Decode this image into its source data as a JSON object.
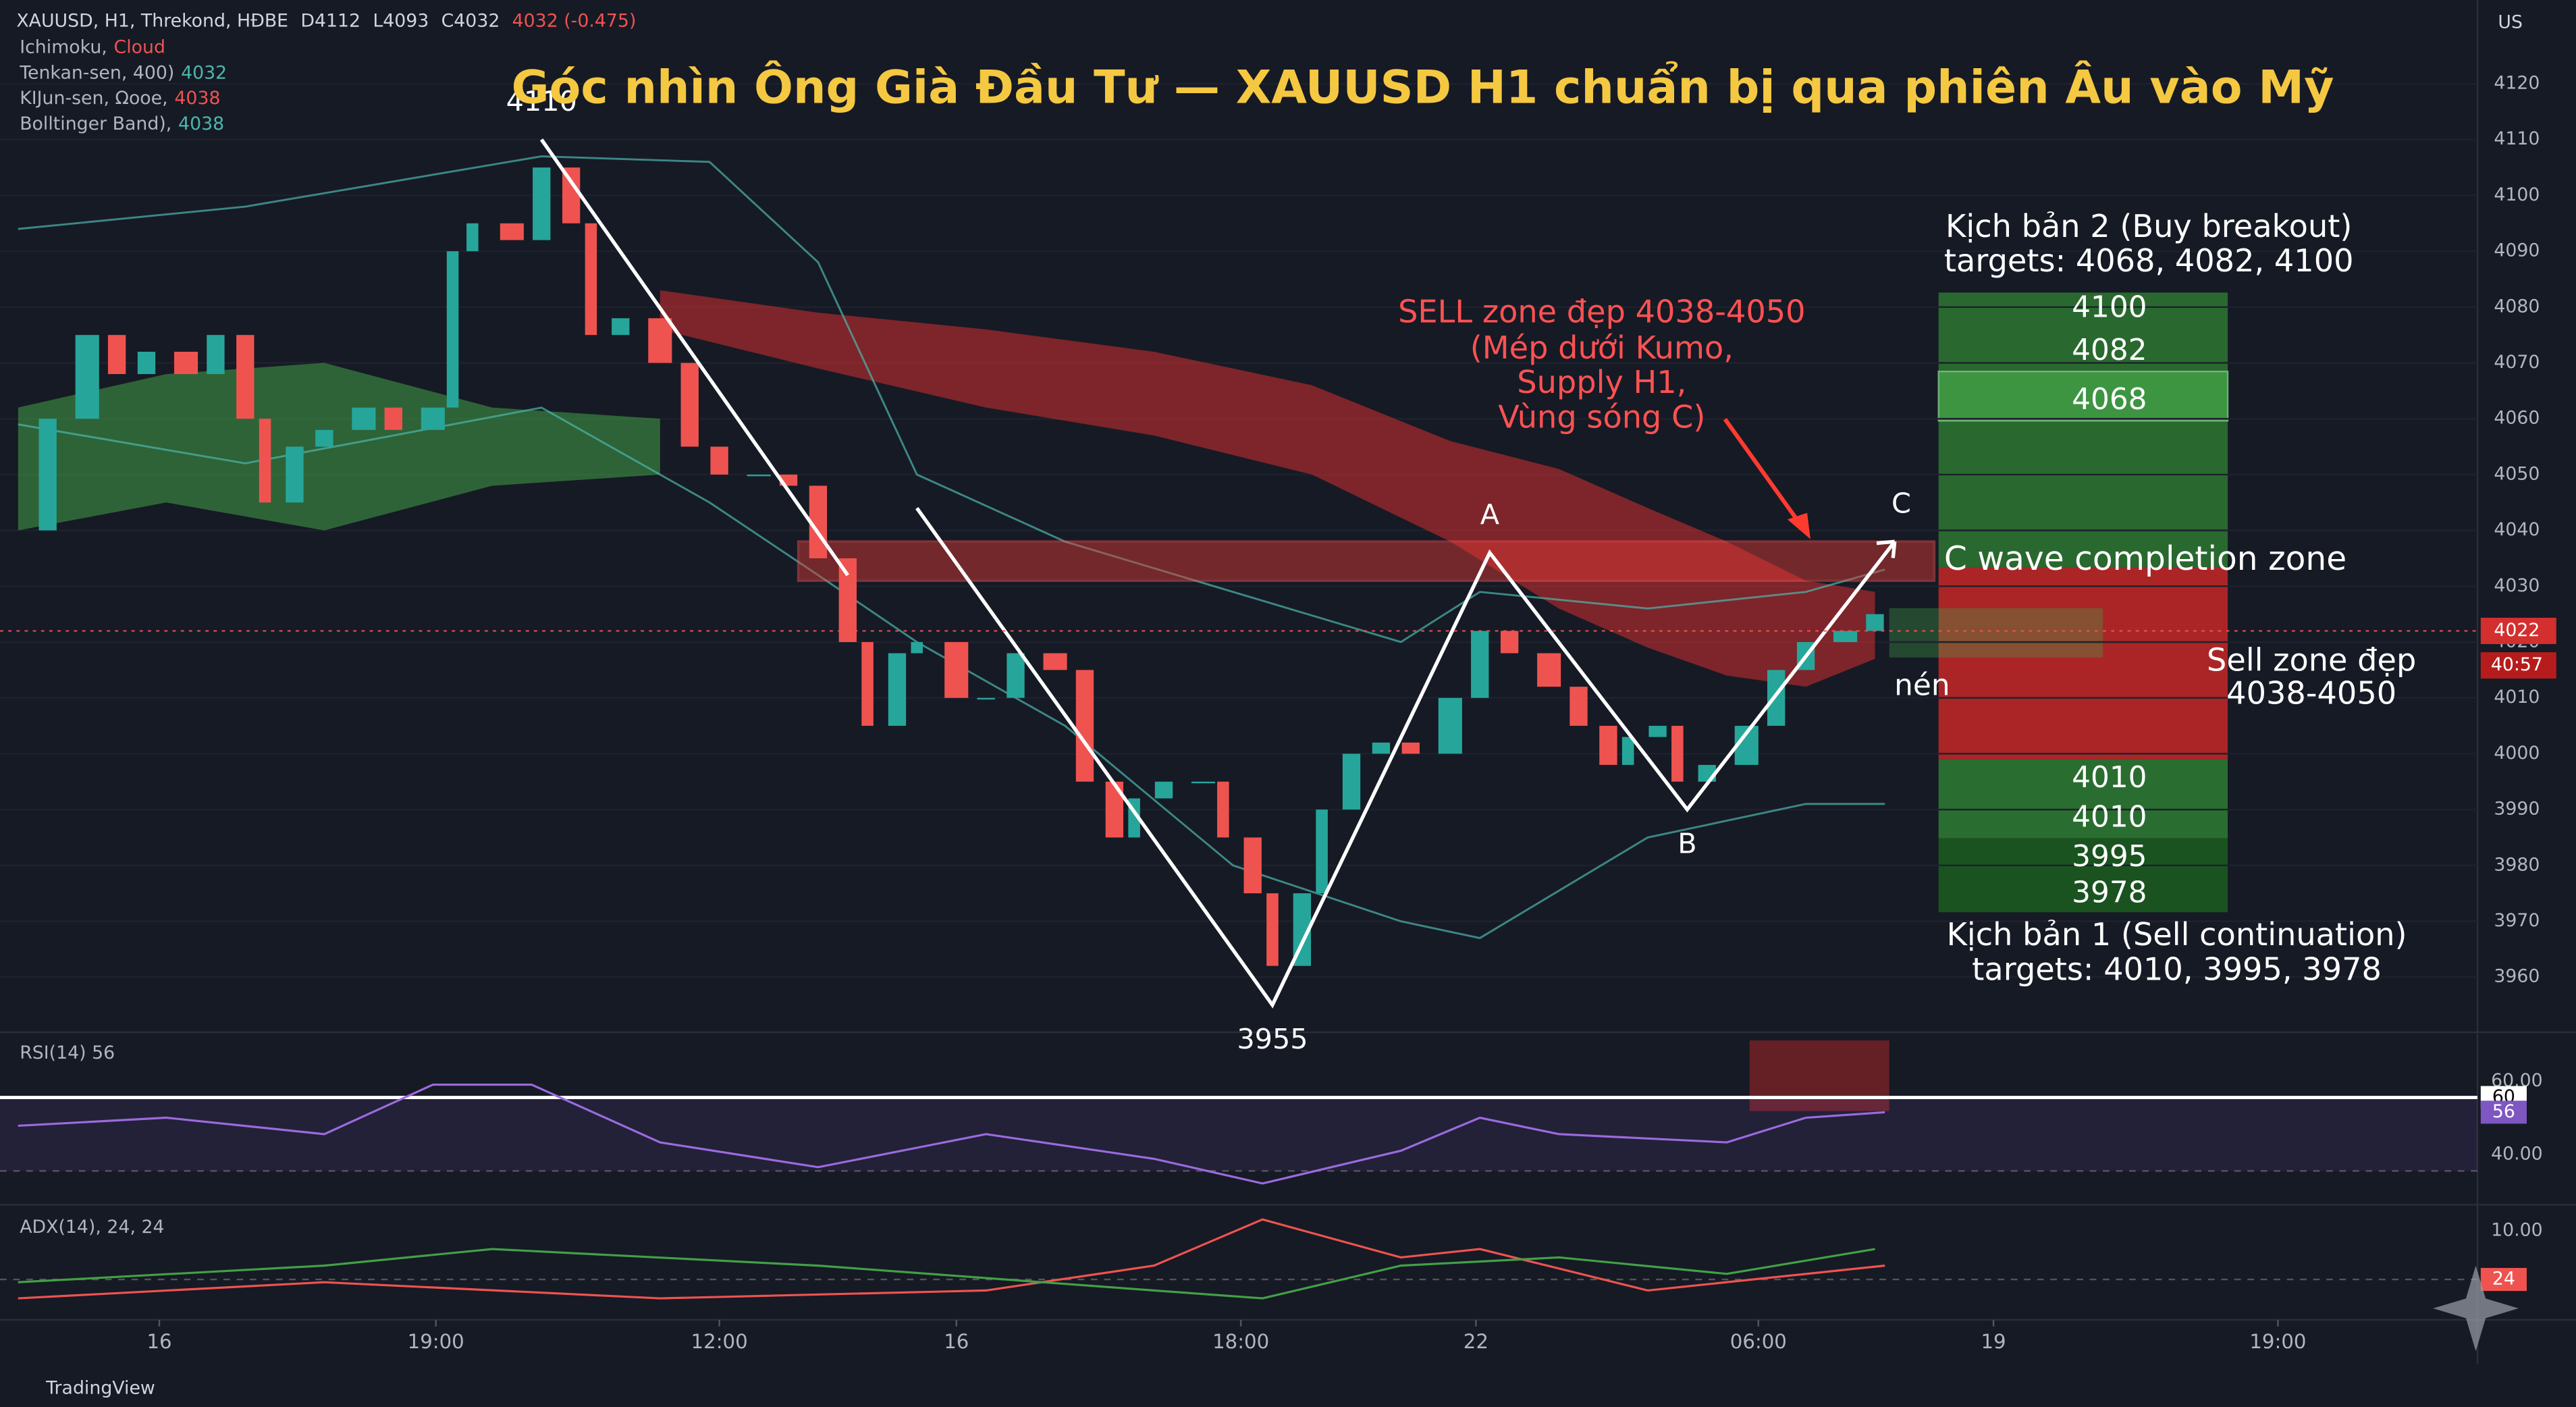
{
  "chart_data": {
    "type": "candlestick",
    "title": "Góc nhìn Ông Già Đầu Tư — XAUUSD H1 chuẩn bị qua phiên Âu vào Mỹ",
    "header_items": [
      "XAUUSD, H1, Threkond, HĐBE",
      "D4112",
      "L4093",
      "C4032",
      "4032 (-0.475)"
    ],
    "indicators": [
      {
        "name": "Ichimoku,",
        "value": "Cloud"
      },
      {
        "name": "Tenkan-sen, 400)",
        "value": "4032"
      },
      {
        "name": "KIJun-sen, Ωooe,",
        "value": "4038"
      },
      {
        "name": "Bolltinger Band),",
        "value": "4038"
      }
    ],
    "corner_label": "US",
    "xlim": [
      0,
      250
    ],
    "xticks": [
      {
        "value": 15.3,
        "label": "16"
      },
      {
        "value": 43.3,
        "label": "19:00"
      },
      {
        "value": 72,
        "label": "12:00"
      },
      {
        "value": 96,
        "label": "16"
      },
      {
        "value": 124.8,
        "label": "18:00"
      },
      {
        "value": 148.6,
        "label": "22"
      },
      {
        "value": 177.2,
        "label": "06:00"
      },
      {
        "value": 201,
        "label": "19"
      },
      {
        "value": 229.8,
        "label": "19:00"
      }
    ],
    "ylim": [
      3951,
      4135
    ],
    "yticks": [
      3960,
      3970,
      3980,
      3990,
      4000,
      4010,
      4020,
      4030,
      4040,
      4050,
      4060,
      4070,
      4080,
      4090,
      4100,
      4110,
      4120
    ],
    "price": {
      "up_color": "#26a69a",
      "down_color": "#ef5350",
      "x": [
        1,
        4,
        8,
        11,
        14,
        18,
        21,
        24,
        26,
        29,
        32,
        36,
        39,
        43,
        45,
        47,
        51,
        54,
        57,
        59,
        62,
        66,
        69,
        72,
        76,
        79,
        82,
        85,
        87,
        90,
        92,
        96,
        99,
        102,
        106,
        109,
        112,
        114,
        117,
        121,
        123,
        126,
        128,
        131,
        133,
        136,
        139,
        142,
        146,
        149,
        152,
        156,
        159,
        162,
        164,
        167,
        169,
        172,
        176,
        179,
        182,
        186,
        189
      ],
      "values": [
        4040,
        4060,
        4075,
        4068,
        4072,
        4068,
        4075,
        4060,
        4045,
        4055,
        4058,
        4062,
        4058,
        4062,
        4090,
        4095,
        4092,
        4105,
        4095,
        4075,
        4078,
        4070,
        4055,
        4050,
        4050,
        4048,
        4035,
        4020,
        4005,
        4018,
        4020,
        4010,
        4010,
        4018,
        4015,
        3995,
        3985,
        3992,
        3995,
        3995,
        3985,
        3975,
        3962,
        3975,
        3990,
        4000,
        4002,
        4000,
        4010,
        4022,
        4018,
        4012,
        4005,
        3998,
        4003,
        4005,
        3995,
        3998,
        4005,
        4015,
        4020,
        4022,
        4025
      ]
    },
    "clouds": [
      {
        "color": "#d32f2f",
        "x": [
          66,
          82,
          99,
          116,
          132,
          146,
          157,
          166,
          174,
          182,
          189
        ],
        "upper": [
          4083,
          4079,
          4076,
          4072,
          4066,
          4056,
          4051,
          4044,
          4038,
          4031,
          4029
        ],
        "lower": [
          4076,
          4069,
          4062,
          4057,
          4050,
          4038,
          4026,
          4019,
          4014,
          4012,
          4017
        ]
      },
      {
        "color": "#43a047",
        "x": [
          1,
          16,
          32,
          49,
          66
        ],
        "upper": [
          4062,
          4068,
          4070,
          4062,
          4060
        ],
        "lower": [
          4040,
          4045,
          4040,
          4048,
          4050
        ]
      }
    ],
    "bollinger": {
      "color": "#4db6ac",
      "x": [
        1,
        24,
        54,
        71,
        82,
        92,
        107,
        124,
        141,
        149,
        166,
        182,
        190
      ],
      "upper": [
        4094,
        4098,
        4107,
        4106,
        4088,
        4050,
        4038,
        4029,
        4020,
        4029,
        4026,
        4029,
        4033
      ],
      "lower": [
        4059,
        4052,
        4062,
        4045,
        4032,
        4020,
        4005,
        3980,
        3970,
        3967,
        3985,
        3991,
        3991
      ]
    },
    "wave": {
      "color": "#ffffff",
      "x": [
        54,
        85,
        null,
        92,
        128,
        150,
        170,
        191
      ],
      "values": [
        4110,
        4032,
        null,
        4044,
        3955,
        4036,
        3990,
        4038
      ],
      "labels": [
        "4110",
        null,
        null,
        null,
        "3955",
        "A",
        "B",
        "C"
      ]
    },
    "zone": {
      "label": "C wave completion zone",
      "range": [
        4031,
        4038
      ],
      "xrange": [
        80,
        195
      ]
    },
    "price_tags": [
      {
        "value": 4022,
        "label": "4022"
      },
      {
        "value": 4017,
        "label": "40:57"
      }
    ],
    "annotations": [
      "Kịch bản 2 (Buy breakout)",
      "targets: 4068, 4082, 4100",
      "SELL zone đẹp 4038-4050",
      "(Mép dưới Kumo,",
      "Supply H1,",
      "Vùng sóng C)",
      "Sell zone đẹp",
      "4038-4050",
      "nén",
      "4100",
      "4082",
      "4068",
      "4010",
      "4010",
      "3995",
      "3978",
      "Kịch bản 1 (Sell continuation)",
      "targets: 4010, 3995, 3978"
    ],
    "rsi": {
      "title": "RSI(14) 56",
      "color": "#9c6ade",
      "ylim": [
        33,
        76
      ],
      "yticks": [
        {
          "value": 60,
          "label": "60.00"
        },
        {
          "value": 40,
          "label": "40.00"
        }
      ],
      "level_tag": 60,
      "last_tag": 56,
      "x": [
        1,
        16,
        32,
        43,
        53,
        66,
        82,
        99,
        116,
        127,
        141,
        149,
        157,
        174,
        182,
        190
      ],
      "values": [
        52.3,
        54.5,
        50,
        63.5,
        63.5,
        47.8,
        41,
        50,
        43.3,
        36.6,
        45.5,
        54.5,
        50,
        47.8,
        54.5,
        56
      ]
    },
    "adx": {
      "title": "ADX(14), 24, 24",
      "ylim": [
        33,
        8
      ],
      "yticks": [
        {
          "value": 10,
          "label": "10.00"
        }
      ],
      "tag": 24,
      "series": [
        {
          "color": "#ef5350",
          "x": [
            1,
            32,
            66,
            99,
            116,
            127,
            141,
            149,
            166,
            190
          ],
          "values": [
            28.8,
            24.7,
            28.8,
            26.8,
            20.5,
            8.8,
            18.4,
            16.3,
            26.8,
            20.5
          ]
        },
        {
          "color": "#43a047",
          "x": [
            1,
            32,
            49,
            82,
            116,
            127,
            141,
            157,
            174,
            189
          ],
          "values": [
            24.7,
            20.5,
            16.3,
            20.5,
            26.8,
            28.8,
            20.5,
            18.4,
            22.6,
            16.3
          ]
        }
      ]
    },
    "footer": "TradingView"
  }
}
